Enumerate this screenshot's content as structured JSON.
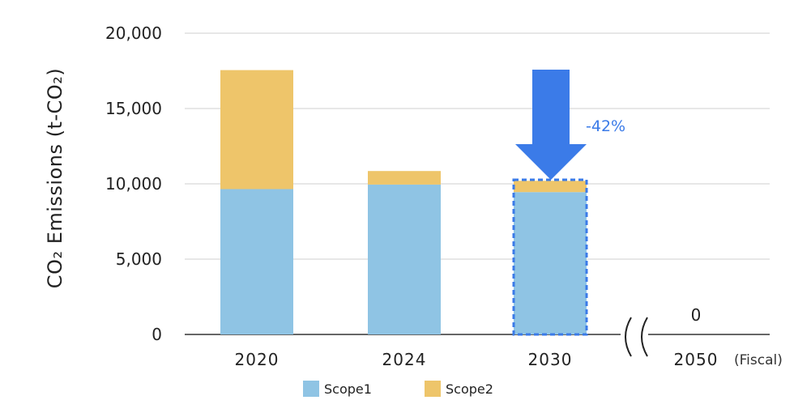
{
  "chart_data": {
    "type": "bar",
    "stacked": true,
    "categories": [
      "2020",
      "2024",
      "2030",
      "2050"
    ],
    "series": [
      {
        "name": "Scope1",
        "values": [
          9650,
          9950,
          9450,
          0
        ],
        "color": "#8fc4e4"
      },
      {
        "name": "Scope2",
        "values": [
          7900,
          900,
          750,
          0
        ],
        "color": "#eec56a"
      }
    ],
    "ylabel": "CO₂ Emissions (t-CO₂)",
    "xunit_label": "(Fiscal)",
    "ylim": [
      0,
      20000
    ],
    "yticks": [
      "0",
      "5,000",
      "10,000",
      "15,000",
      "20,000"
    ],
    "ytick_values": [
      0,
      5000,
      10000,
      15000,
      20000
    ],
    "grid": true,
    "legend_position": "bottom",
    "annotations": {
      "reduction_label": "-42%",
      "reduction_color": "#3b7be8",
      "value_2050_label": "0",
      "axis_break": "2030-2050"
    }
  }
}
